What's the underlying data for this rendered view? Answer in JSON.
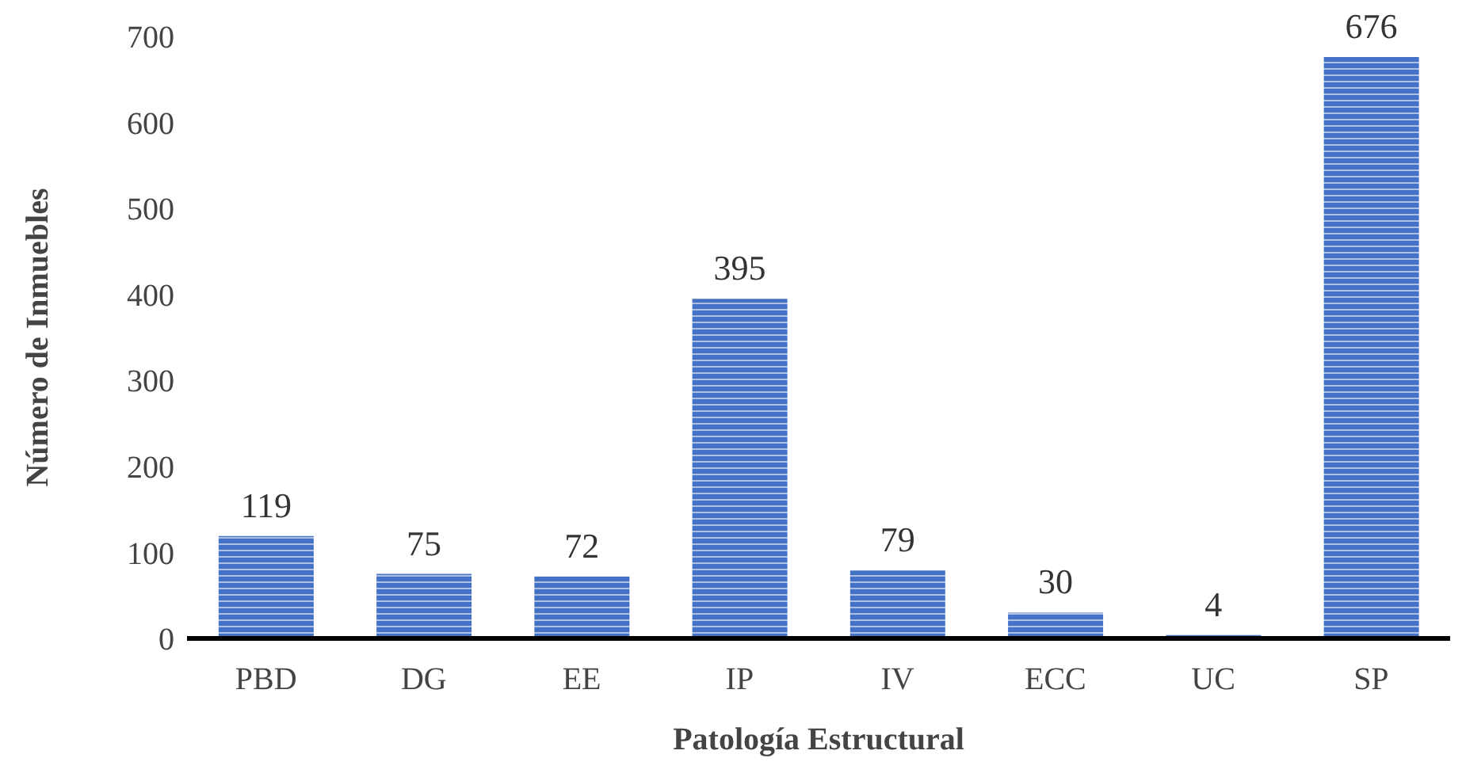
{
  "chart_data": {
    "type": "bar",
    "xlabel": "Patología Estructural",
    "ylabel": "Número de Inmuebles",
    "categories": [
      "PBD",
      "DG",
      "EE",
      "IP",
      "IV",
      "ECC",
      "UC",
      "SP"
    ],
    "values": [
      119,
      75,
      72,
      395,
      79,
      30,
      4,
      676
    ],
    "color": "#4472c4",
    "ylim": [
      0,
      700
    ],
    "yticks": [
      0,
      100,
      200,
      300,
      400,
      500,
      600,
      700
    ],
    "grid": false,
    "data_labels": true
  }
}
